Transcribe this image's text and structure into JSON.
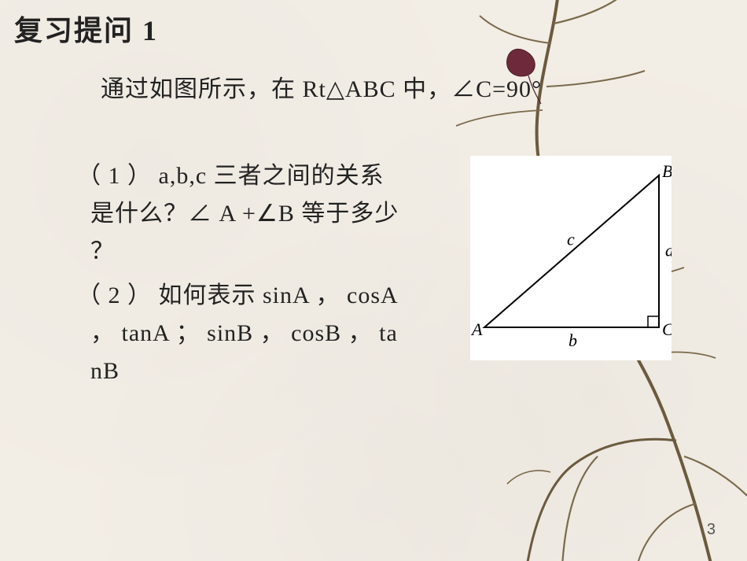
{
  "title": "复习提问 1",
  "intro": "通过如图所示，在 Rt△ABC 中，∠C=90°",
  "q1_line1": "（ 1 ） a,b,c 三者之间的关系",
  "q1_line2": "  是什么？∠ A +∠B 等于多少",
  "q1_line3": "  ？",
  "q2_line1": "（ 2 ） 如何表示 sinA ， cosA",
  "q2_line2": "  ， tanA ； sinB ， cosB ， ta",
  "q2_line3": "  nB",
  "page_number": "3",
  "triangle": {
    "labels": {
      "A": "A",
      "B": "B",
      "C": "C",
      "a": "a",
      "b": "b",
      "c": "c"
    },
    "label_font": "italic 22px 'Times New Roman', serif",
    "stroke": "#000000",
    "stroke_width": 2,
    "bg": "#ffffff",
    "A": [
      18,
      218
    ],
    "B": [
      240,
      25
    ],
    "C": [
      240,
      218
    ],
    "right_angle_size": 14
  },
  "branch": {
    "stroke": "#6b5a3e",
    "stroke_thin": "#7a6a4c",
    "leaf_fill": "#6e2a3a",
    "leaf_stroke": "#4a1c28"
  },
  "colors": {
    "bg": "#f2ede5",
    "text": "#222222",
    "page_num": "#555555"
  }
}
